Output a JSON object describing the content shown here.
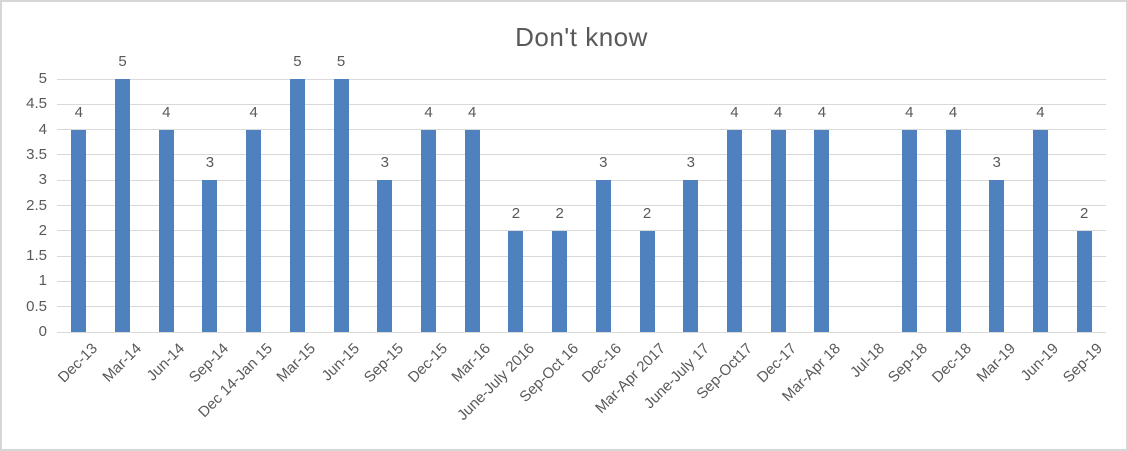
{
  "chart_data": {
    "type": "bar",
    "title": "Don't know",
    "categories": [
      "Dec-13",
      "Mar-14",
      "Jun-14",
      "Sep-14",
      "Dec 14-Jan 15",
      "Mar-15",
      "Jun-15",
      "Sep-15",
      "Dec-15",
      "Mar-16",
      "June-July 2016",
      "Sep-Oct 16",
      "Dec-16",
      "Mar-Apr 2017",
      "June-July 17",
      "Sep-Oct17",
      "Dec-17",
      "Mar-Apr 18",
      "Jul-18",
      "Sep-18",
      "Dec-18",
      "Mar-19",
      "Jun-19",
      "Sep-19"
    ],
    "values": [
      4,
      5,
      4,
      3,
      4,
      5,
      5,
      3,
      4,
      4,
      2,
      2,
      3,
      2,
      3,
      4,
      4,
      4,
      null,
      4,
      4,
      3,
      4,
      2
    ],
    "yticks": [
      0,
      0.5,
      1,
      1.5,
      2,
      2.5,
      3,
      3.5,
      4,
      4.5,
      5
    ],
    "ylim": [
      0,
      5
    ],
    "xlabel": "",
    "ylabel": "",
    "legend_position": "none",
    "grid": "horizontal",
    "data_labels": true,
    "colors": {
      "bar": "#4E81BD",
      "gridline": "#D9D9D9",
      "axis_text": "#595959",
      "title_text": "#595959",
      "chart_border": "#D6D6D6",
      "background": "#FFFFFF"
    }
  }
}
